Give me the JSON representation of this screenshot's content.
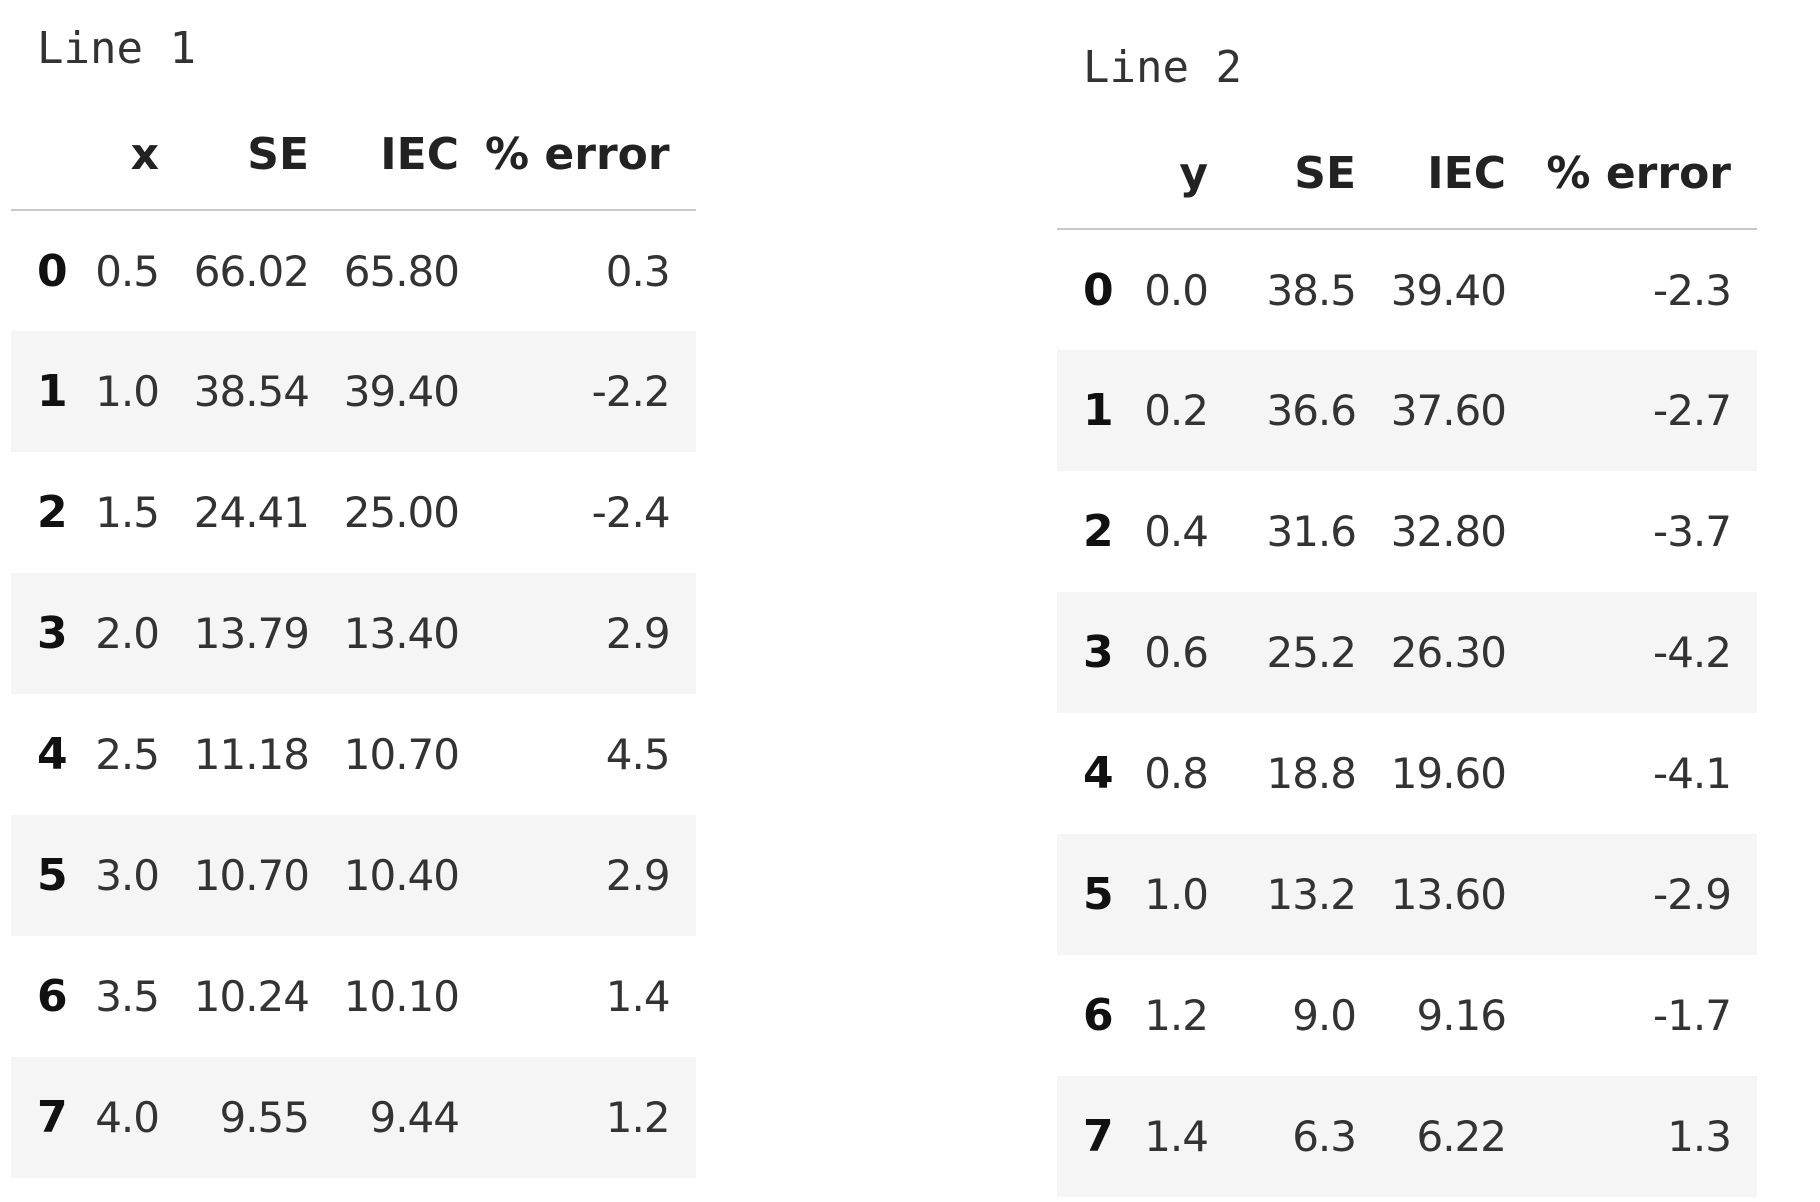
{
  "tables": [
    {
      "caption": "Line 1",
      "columns": [
        "",
        "x",
        "SE",
        "IEC",
        "% error"
      ],
      "rows": [
        {
          "index": "0",
          "cells": [
            "0.5",
            "66.02",
            "65.80",
            "0.3"
          ]
        },
        {
          "index": "1",
          "cells": [
            "1.0",
            "38.54",
            "39.40",
            "-2.2"
          ]
        },
        {
          "index": "2",
          "cells": [
            "1.5",
            "24.41",
            "25.00",
            "-2.4"
          ]
        },
        {
          "index": "3",
          "cells": [
            "2.0",
            "13.79",
            "13.40",
            "2.9"
          ]
        },
        {
          "index": "4",
          "cells": [
            "2.5",
            "11.18",
            "10.70",
            "4.5"
          ]
        },
        {
          "index": "5",
          "cells": [
            "3.0",
            "10.70",
            "10.40",
            "2.9"
          ]
        },
        {
          "index": "6",
          "cells": [
            "3.5",
            "10.24",
            "10.10",
            "1.4"
          ]
        },
        {
          "index": "7",
          "cells": [
            "4.0",
            "9.55",
            "9.44",
            "1.2"
          ]
        }
      ]
    },
    {
      "caption": "Line 2",
      "columns": [
        "",
        "y",
        "SE",
        "IEC",
        "% error"
      ],
      "rows": [
        {
          "index": "0",
          "cells": [
            "0.0",
            "38.5",
            "39.40",
            "-2.3"
          ]
        },
        {
          "index": "1",
          "cells": [
            "0.2",
            "36.6",
            "37.60",
            "-2.7"
          ]
        },
        {
          "index": "2",
          "cells": [
            "0.4",
            "31.6",
            "32.80",
            "-3.7"
          ]
        },
        {
          "index": "3",
          "cells": [
            "0.6",
            "25.2",
            "26.30",
            "-4.2"
          ]
        },
        {
          "index": "4",
          "cells": [
            "0.8",
            "18.8",
            "19.60",
            "-4.1"
          ]
        },
        {
          "index": "5",
          "cells": [
            "1.0",
            "13.2",
            "13.60",
            "-2.9"
          ]
        },
        {
          "index": "6",
          "cells": [
            "1.2",
            "9.0",
            "9.16",
            "-1.7"
          ]
        },
        {
          "index": "7",
          "cells": [
            "1.4",
            "6.3",
            "6.22",
            "1.3"
          ]
        }
      ]
    }
  ]
}
